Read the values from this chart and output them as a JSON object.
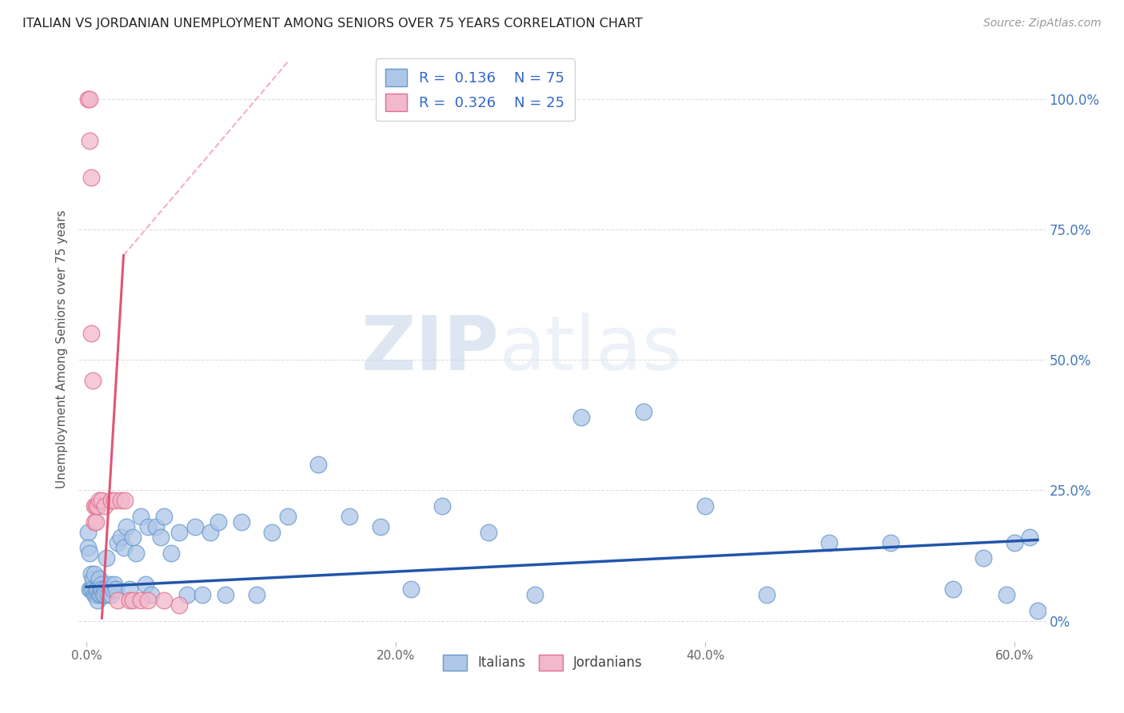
{
  "title": "ITALIAN VS JORDANIAN UNEMPLOYMENT AMONG SENIORS OVER 75 YEARS CORRELATION CHART",
  "source": "Source: ZipAtlas.com",
  "ylabel": "Unemployment Among Seniors over 75 years",
  "xlim": [
    -0.005,
    0.62
  ],
  "ylim": [
    -0.04,
    1.08
  ],
  "xtick_labels": [
    "0.0%",
    "20.0%",
    "40.0%",
    "60.0%"
  ],
  "xtick_vals": [
    0.0,
    0.2,
    0.4,
    0.6
  ],
  "ytick_labels_right": [
    "100.0%",
    "75.0%",
    "50.0%",
    "25.0%",
    "0%"
  ],
  "ytick_vals": [
    1.0,
    0.75,
    0.5,
    0.25,
    0.0
  ],
  "italian_color": "#aec6e8",
  "jordanian_color": "#f2b8cb",
  "italian_edge": "#6699cc",
  "jordanian_edge": "#e07090",
  "trend_italian_color": "#2255aa",
  "trend_jordanian_color": "#e05575",
  "legend_R_italian": "0.136",
  "legend_N_italian": "75",
  "legend_R_jordanian": "0.326",
  "legend_N_jordanian": "25",
  "watermark_zip": "ZIP",
  "watermark_atlas": "atlas",
  "background_color": "#ffffff",
  "grid_color": "#dddddd",
  "italian_x": [
    0.001,
    0.001,
    0.002,
    0.002,
    0.003,
    0.003,
    0.004,
    0.004,
    0.005,
    0.005,
    0.006,
    0.006,
    0.007,
    0.007,
    0.008,
    0.008,
    0.009,
    0.009,
    0.01,
    0.01,
    0.011,
    0.012,
    0.012,
    0.013,
    0.014,
    0.015,
    0.016,
    0.017,
    0.018,
    0.019,
    0.02,
    0.022,
    0.024,
    0.026,
    0.028,
    0.03,
    0.032,
    0.035,
    0.038,
    0.04,
    0.042,
    0.045,
    0.048,
    0.05,
    0.055,
    0.06,
    0.065,
    0.07,
    0.075,
    0.08,
    0.085,
    0.09,
    0.1,
    0.11,
    0.12,
    0.13,
    0.15,
    0.17,
    0.19,
    0.21,
    0.23,
    0.26,
    0.29,
    0.32,
    0.36,
    0.4,
    0.44,
    0.48,
    0.52,
    0.56,
    0.58,
    0.595,
    0.6,
    0.61,
    0.615
  ],
  "italian_y": [
    0.17,
    0.14,
    0.13,
    0.06,
    0.09,
    0.06,
    0.08,
    0.06,
    0.09,
    0.05,
    0.05,
    0.06,
    0.06,
    0.04,
    0.05,
    0.08,
    0.06,
    0.05,
    0.07,
    0.06,
    0.05,
    0.06,
    0.05,
    0.12,
    0.05,
    0.07,
    0.05,
    0.06,
    0.07,
    0.06,
    0.15,
    0.16,
    0.14,
    0.18,
    0.06,
    0.16,
    0.13,
    0.2,
    0.07,
    0.18,
    0.05,
    0.18,
    0.16,
    0.2,
    0.13,
    0.17,
    0.05,
    0.18,
    0.05,
    0.17,
    0.19,
    0.05,
    0.19,
    0.05,
    0.17,
    0.2,
    0.3,
    0.2,
    0.18,
    0.06,
    0.22,
    0.17,
    0.05,
    0.39,
    0.4,
    0.22,
    0.05,
    0.15,
    0.15,
    0.06,
    0.12,
    0.05,
    0.15,
    0.16,
    0.02
  ],
  "jordanian_x": [
    0.001,
    0.002,
    0.002,
    0.003,
    0.003,
    0.004,
    0.005,
    0.005,
    0.006,
    0.006,
    0.007,
    0.008,
    0.01,
    0.012,
    0.016,
    0.018,
    0.02,
    0.022,
    0.025,
    0.028,
    0.03,
    0.035,
    0.04,
    0.05,
    0.06
  ],
  "jordanian_y": [
    1.0,
    1.0,
    0.92,
    0.85,
    0.55,
    0.46,
    0.22,
    0.19,
    0.22,
    0.19,
    0.22,
    0.23,
    0.23,
    0.22,
    0.23,
    0.23,
    0.04,
    0.23,
    0.23,
    0.04,
    0.04,
    0.04,
    0.04,
    0.04,
    0.03
  ],
  "trend_italian_x0": 0.0,
  "trend_italian_x1": 0.615,
  "trend_italian_y0": 0.065,
  "trend_italian_y1": 0.155,
  "trend_jordan_solid_x0": 0.01,
  "trend_jordan_solid_x1": 0.024,
  "trend_jordan_y0": 0.005,
  "trend_jordan_y1": 0.7,
  "trend_jordan_dash_x0": 0.024,
  "trend_jordan_dash_x1": 0.13,
  "trend_jordan_dash_y0": 0.7,
  "trend_jordan_dash_y1": 1.07
}
